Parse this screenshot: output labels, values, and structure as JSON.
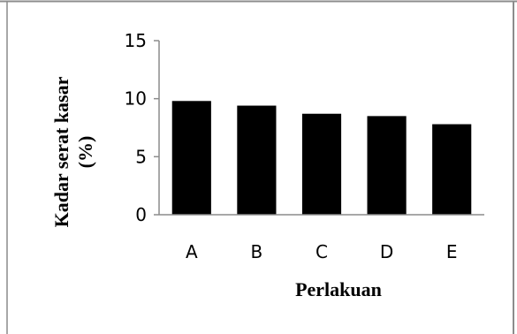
{
  "chart_data": {
    "type": "bar",
    "categories": [
      "A",
      "B",
      "C",
      "D",
      "E"
    ],
    "values": [
      9.8,
      9.4,
      8.7,
      8.5,
      7.8
    ],
    "xlabel": "Perlakuan",
    "ylabel_lines": [
      "Kadar serat kasar",
      "(%)"
    ],
    "ylim": [
      0,
      15
    ],
    "yticks": [
      "0",
      "5",
      "10",
      "15"
    ],
    "bar_color": "#000000",
    "grid": false,
    "legend": "none"
  }
}
